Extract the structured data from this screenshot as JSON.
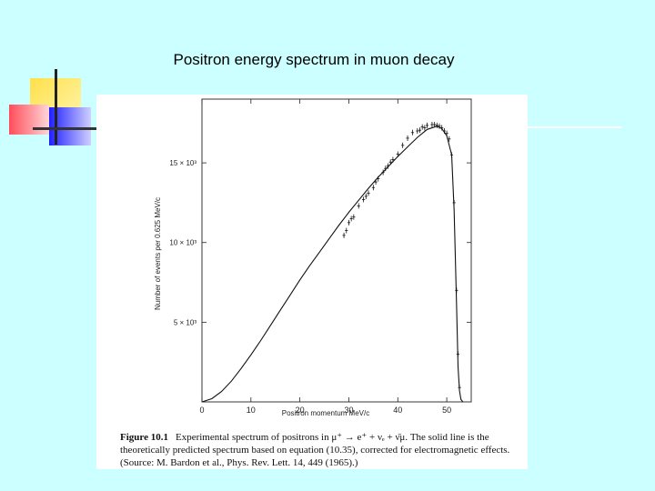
{
  "slide": {
    "title": "Positron energy spectrum in muon decay"
  },
  "colors": {
    "background": "#ccffff",
    "panel": "#ffffff",
    "ink": "#111111"
  },
  "caption": {
    "label": "Figure 10.1",
    "text": "Experimental spectrum of positrons in μ⁺ → e⁺ + νₑ + ν̄μ. The solid line is the theoretically predicted spectrum based on equation (10.35), corrected for electromagnetic effects. (Source: M. Bardon et al., Phys. Rev. Lett. 14, 449 (1965).)"
  },
  "chart_data": {
    "type": "line",
    "xlabel": "Positron momentum MeV/c",
    "ylabel": "Number of events per 0.625 MeV/c",
    "xlim": [
      0,
      55
    ],
    "ylim": [
      0,
      19000
    ],
    "x_ticks": [
      0,
      10,
      20,
      30,
      40,
      50
    ],
    "x_tick_labels": [
      "0",
      "10",
      "20",
      "30",
      "40",
      "50"
    ],
    "y_ticks": [
      5000,
      10000,
      15000
    ],
    "y_tick_labels": [
      "5 × 10³",
      "10 × 10³",
      "15 × 10³"
    ],
    "grid": false,
    "series": [
      {
        "kind": "theory",
        "x": [
          0,
          2,
          4,
          6,
          8,
          10,
          12,
          14,
          16,
          18,
          20,
          22,
          24,
          26,
          28,
          30,
          32,
          34,
          36,
          38,
          40,
          42,
          44,
          46,
          48,
          49,
          50,
          51,
          51.5,
          52,
          52.3,
          52.6,
          52.9,
          53.3
        ],
        "y": [
          0,
          200,
          650,
          1300,
          2100,
          2950,
          3850,
          4800,
          5750,
          6700,
          7650,
          8550,
          9400,
          10250,
          11100,
          11900,
          12650,
          13400,
          14100,
          14750,
          15400,
          16000,
          16600,
          17100,
          17300,
          17150,
          16700,
          15500,
          12000,
          6000,
          2200,
          700,
          150,
          0
        ]
      },
      {
        "kind": "measured",
        "x": [
          29,
          29.5,
          30,
          30.5,
          31,
          32,
          33,
          33.5,
          34,
          35,
          35.5,
          36,
          37,
          37.5,
          38,
          38.5,
          39,
          40,
          41,
          42,
          43,
          44,
          44.5,
          45,
          45.5,
          46,
          47,
          47.5,
          48,
          48.5,
          49,
          49.5,
          50,
          50.5,
          51,
          51.5,
          52,
          52.3,
          52.6
        ],
        "y": [
          10450,
          10750,
          11250,
          11500,
          11600,
          12300,
          12700,
          12900,
          13100,
          13450,
          13800,
          14000,
          14400,
          14650,
          14800,
          15050,
          15200,
          15550,
          16100,
          16550,
          16900,
          17000,
          17050,
          17250,
          17200,
          17350,
          17400,
          17400,
          17350,
          17300,
          17200,
          17000,
          16850,
          16500,
          15500,
          12500,
          7000,
          3000,
          900
        ]
      }
    ]
  }
}
